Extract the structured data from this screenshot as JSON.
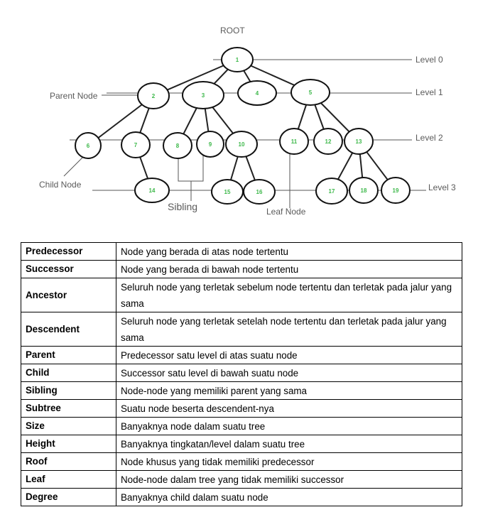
{
  "diagram": {
    "root_label": "ROOT",
    "parent_node_label": "Parent Node",
    "child_node_label": "Child Node",
    "sibling_label": "Sibling",
    "leaf_node_label": "Leaf Node",
    "levels": [
      "Level 0",
      "Level 1",
      "Level 2",
      "Level 3"
    ],
    "nodes": [
      "1",
      "2",
      "3",
      "4",
      "5",
      "6",
      "7",
      "8",
      "9",
      "10",
      "11",
      "12",
      "13",
      "14",
      "15",
      "16",
      "17",
      "18",
      "19"
    ]
  },
  "table": {
    "rows": [
      {
        "term": "Predecessor",
        "def": "Node yang berada di atas node tertentu"
      },
      {
        "term": "Successor",
        "def": "Node yang berada di bawah node tertentu"
      },
      {
        "term": "Ancestor",
        "def": "Seluruh node yang terletak sebelum node tertentu dan terletak pada jalur yang sama"
      },
      {
        "term": "Descendent",
        "def": "Seluruh node yang terletak setelah node tertentu dan terletak pada jalur yang sama"
      },
      {
        "term": "Parent",
        "def": "Predecessor satu level di atas suatu node"
      },
      {
        "term": "Child",
        "def": "Successor satu level di bawah suatu node"
      },
      {
        "term": "Sibling",
        "def": "Node-node yang memiliki parent yang sama"
      },
      {
        "term": "Subtree",
        "def": "Suatu node beserta descendent-nya"
      },
      {
        "term": "Size",
        "def": "Banyaknya node dalam suatu tree"
      },
      {
        "term": "Height",
        "def": "Banyaknya tingkatan/level dalam suatu tree"
      },
      {
        "term": "Roof",
        "def": "Node khusus yang tidak memiliki predecessor"
      },
      {
        "term": "Leaf",
        "def": "Node-node dalam tree yang tidak memiliki successor"
      },
      {
        "term": "Degree",
        "def": "Banyaknya child dalam suatu node"
      }
    ]
  }
}
